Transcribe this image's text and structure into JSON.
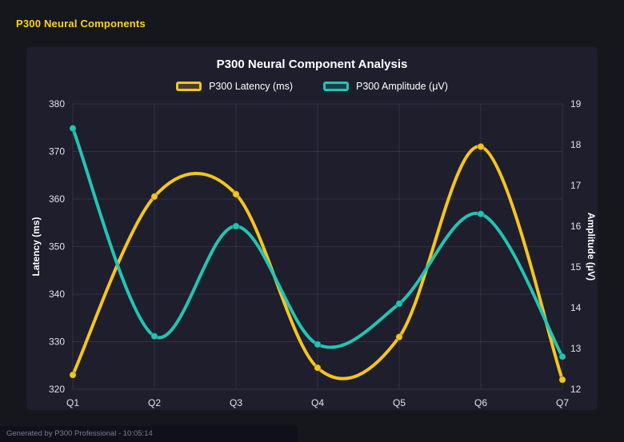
{
  "page": {
    "heading": "P300 Neural Components",
    "footer": "Generated by P300 Professional - 10:05:14"
  },
  "chart_data": {
    "type": "line",
    "title": "P300 Neural Component Analysis",
    "categories": [
      "Q1",
      "Q2",
      "Q3",
      "Q4",
      "Q5",
      "Q6",
      "Q7"
    ],
    "series": [
      {
        "name": "P300 Latency (ms)",
        "axis": "left",
        "color": "#f5c51d",
        "values": [
          323,
          360.5,
          361,
          324.5,
          331,
          371,
          322
        ]
      },
      {
        "name": "P300 Amplitude (μV)",
        "axis": "right",
        "color": "#23c4b4",
        "values": [
          18.4,
          13.3,
          16.0,
          13.1,
          14.1,
          16.3,
          12.8
        ]
      }
    ],
    "left_axis": {
      "label": "Latency (ms)",
      "min": 320,
      "max": 380,
      "ticks": [
        320,
        330,
        340,
        350,
        360,
        370,
        380
      ]
    },
    "right_axis": {
      "label": "Amplitude (μV)",
      "min": 12,
      "max": 19,
      "ticks": [
        12,
        13,
        14,
        15,
        16,
        17,
        18,
        19
      ]
    },
    "grid": true,
    "legend_position": "top",
    "smoothing": "spline",
    "background": "#1e1e2d",
    "tick_color": "#dfe3ec"
  }
}
